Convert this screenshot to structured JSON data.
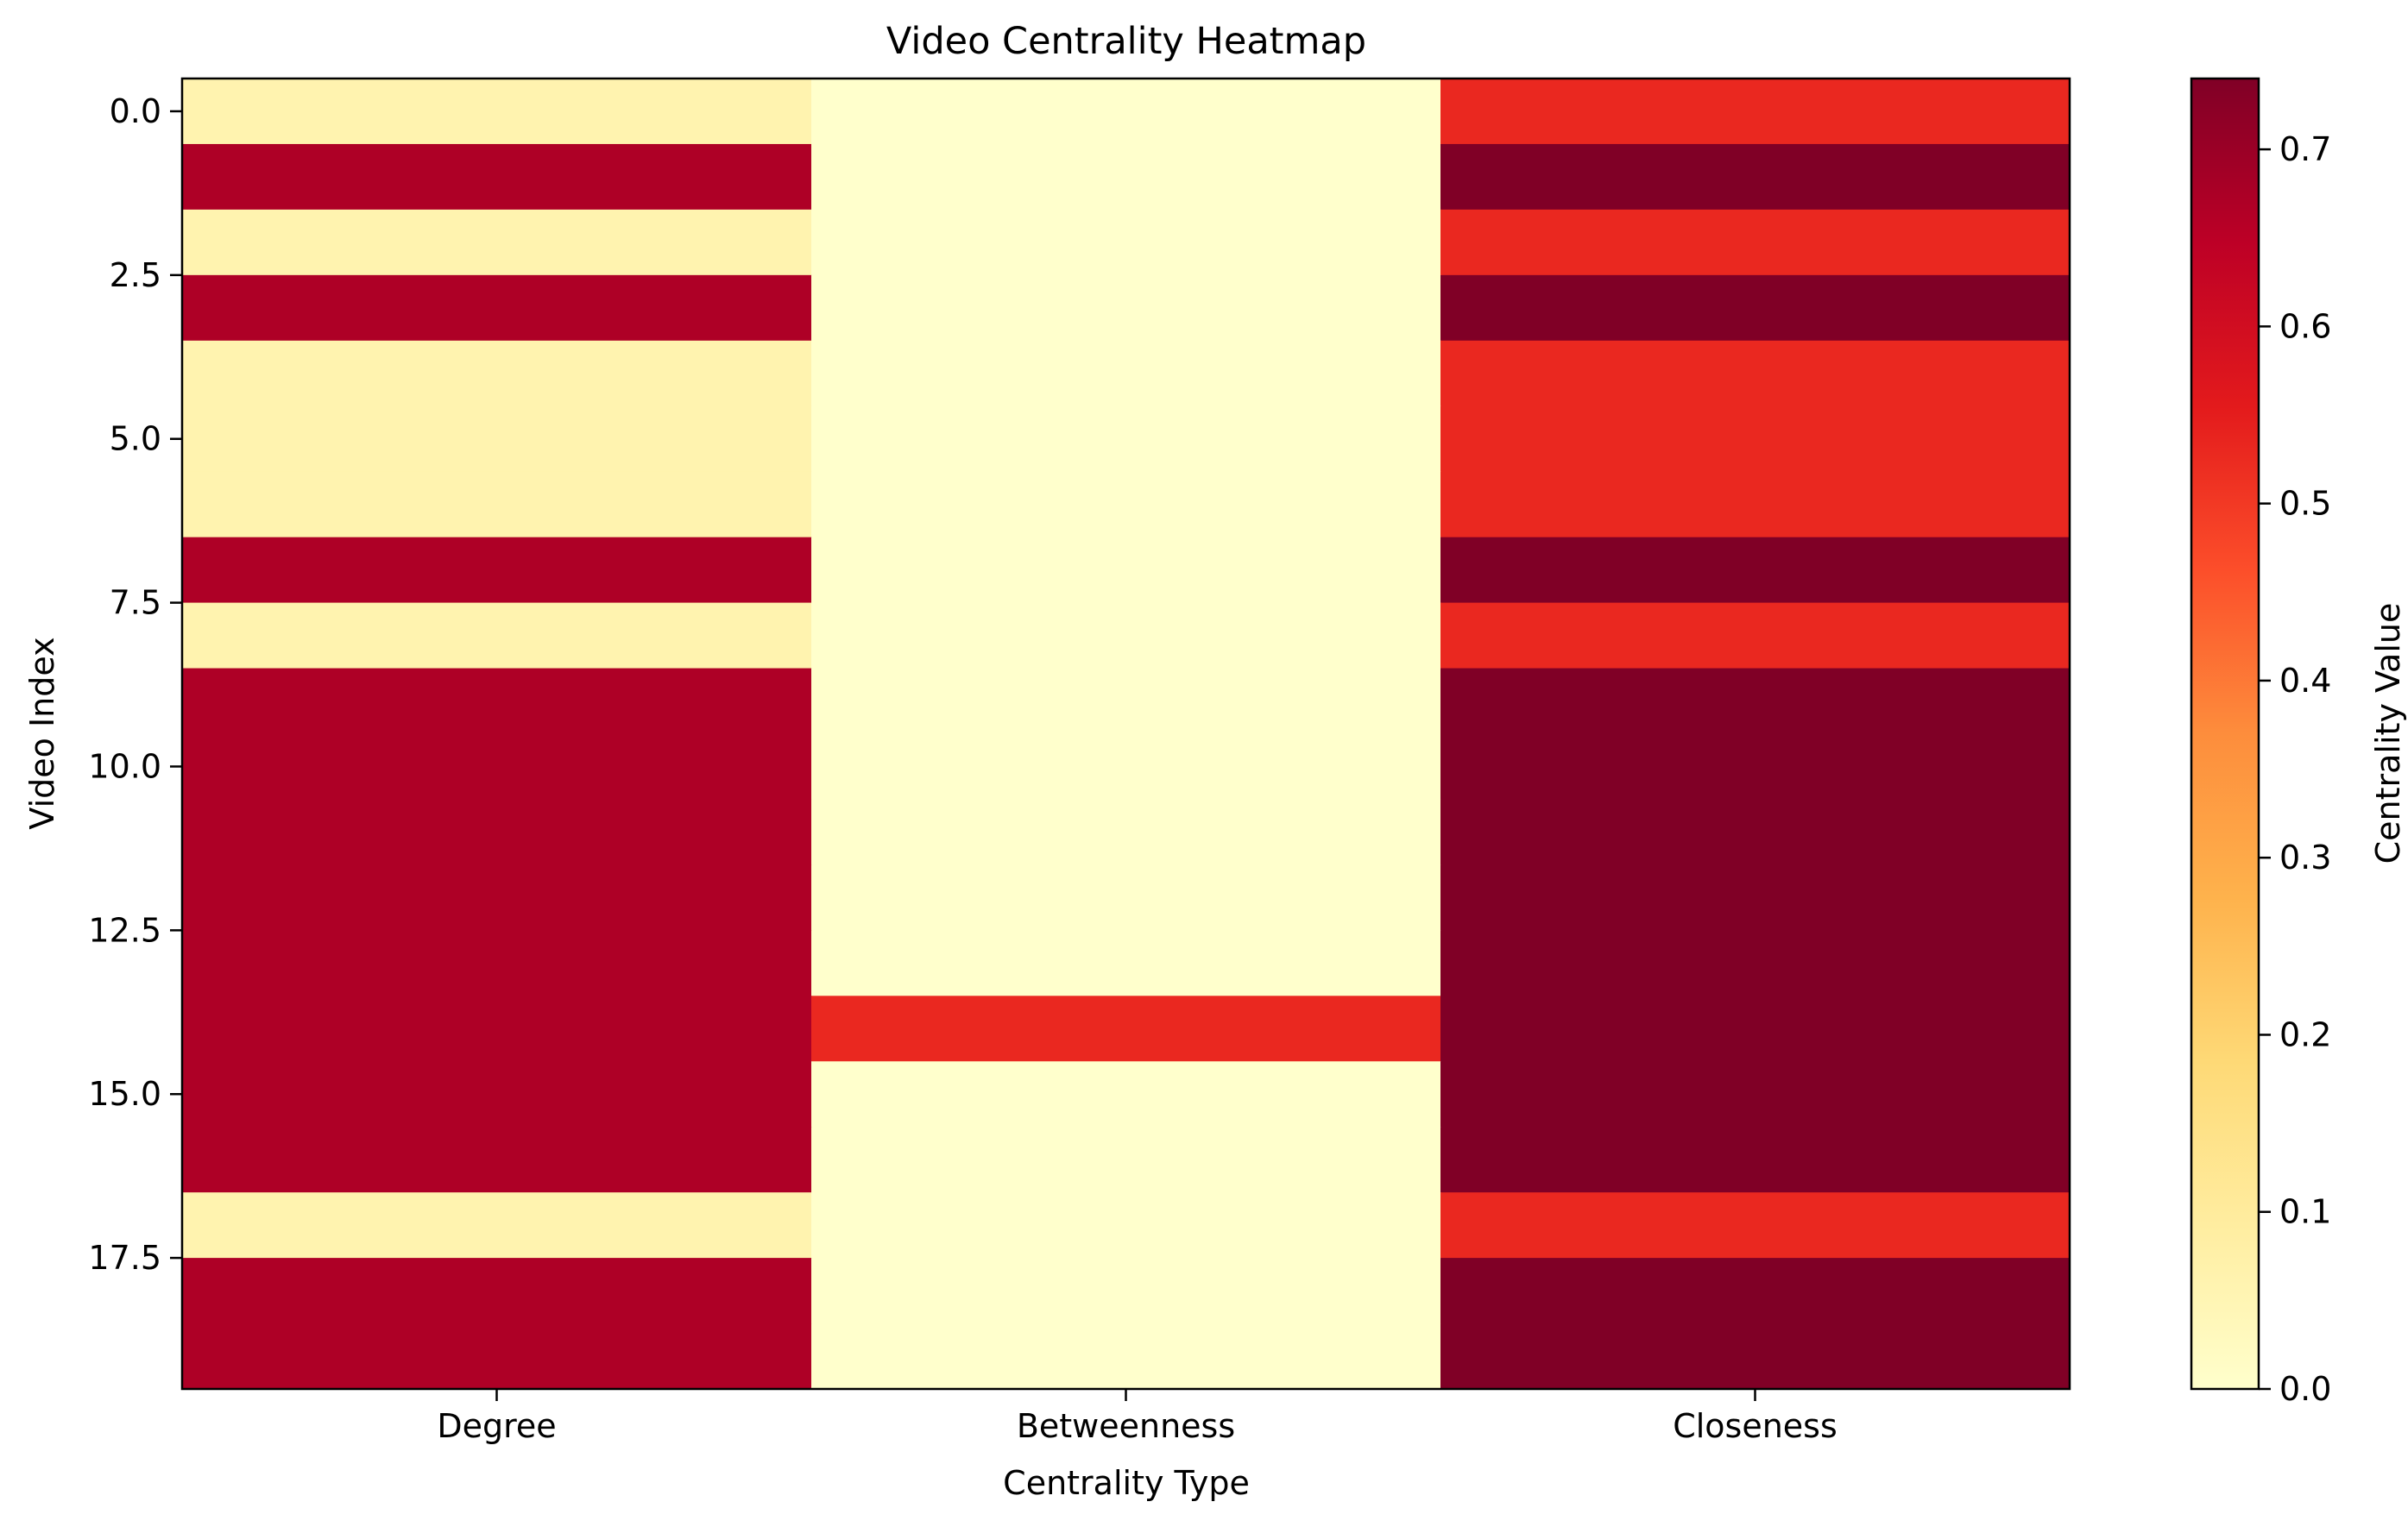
{
  "chart_data": {
    "type": "heatmap",
    "title": "Video Centrality Heatmap",
    "xlabel": "Centrality Type",
    "ylabel": "Video Index",
    "columns": [
      "Degree",
      "Betweenness",
      "Closeness"
    ],
    "rows": [
      0,
      1,
      2,
      3,
      4,
      5,
      6,
      7,
      8,
      9,
      10,
      11,
      12,
      13,
      14,
      15,
      16,
      17,
      18,
      19
    ],
    "values": [
      [
        0.06,
        0.0,
        0.53
      ],
      [
        0.67,
        0.0,
        0.74
      ],
      [
        0.06,
        0.0,
        0.53
      ],
      [
        0.67,
        0.0,
        0.74
      ],
      [
        0.06,
        0.0,
        0.53
      ],
      [
        0.06,
        0.0,
        0.53
      ],
      [
        0.06,
        0.0,
        0.53
      ],
      [
        0.67,
        0.0,
        0.74
      ],
      [
        0.06,
        0.0,
        0.53
      ],
      [
        0.67,
        0.0,
        0.74
      ],
      [
        0.67,
        0.0,
        0.74
      ],
      [
        0.67,
        0.0,
        0.74
      ],
      [
        0.67,
        0.0,
        0.74
      ],
      [
        0.67,
        0.0,
        0.74
      ],
      [
        0.67,
        0.53,
        0.74
      ],
      [
        0.67,
        0.0,
        0.74
      ],
      [
        0.67,
        0.0,
        0.74
      ],
      [
        0.06,
        0.0,
        0.53
      ],
      [
        0.67,
        0.0,
        0.74
      ],
      [
        0.67,
        0.0,
        0.74
      ]
    ],
    "y_ticks": [
      "0.0",
      "2.5",
      "5.0",
      "7.5",
      "10.0",
      "12.5",
      "15.0",
      "17.5"
    ],
    "y_tick_values": [
      0,
      2.5,
      5,
      7.5,
      10,
      12.5,
      15,
      17.5
    ],
    "colorbar": {
      "label": "Centrality Value",
      "range": [
        0.0,
        0.74
      ],
      "ticks": [
        "0.0",
        "0.1",
        "0.2",
        "0.3",
        "0.4",
        "0.5",
        "0.6",
        "0.7"
      ],
      "tick_values": [
        0.0,
        0.1,
        0.2,
        0.3,
        0.4,
        0.5,
        0.6,
        0.7
      ]
    },
    "colormap": "YlOrRd",
    "colormap_stops": [
      "#ffffcc",
      "#ffeda0",
      "#fed976",
      "#feb24c",
      "#fd8d3c",
      "#fc4e2a",
      "#e31a1c",
      "#bd0026",
      "#800026"
    ]
  }
}
